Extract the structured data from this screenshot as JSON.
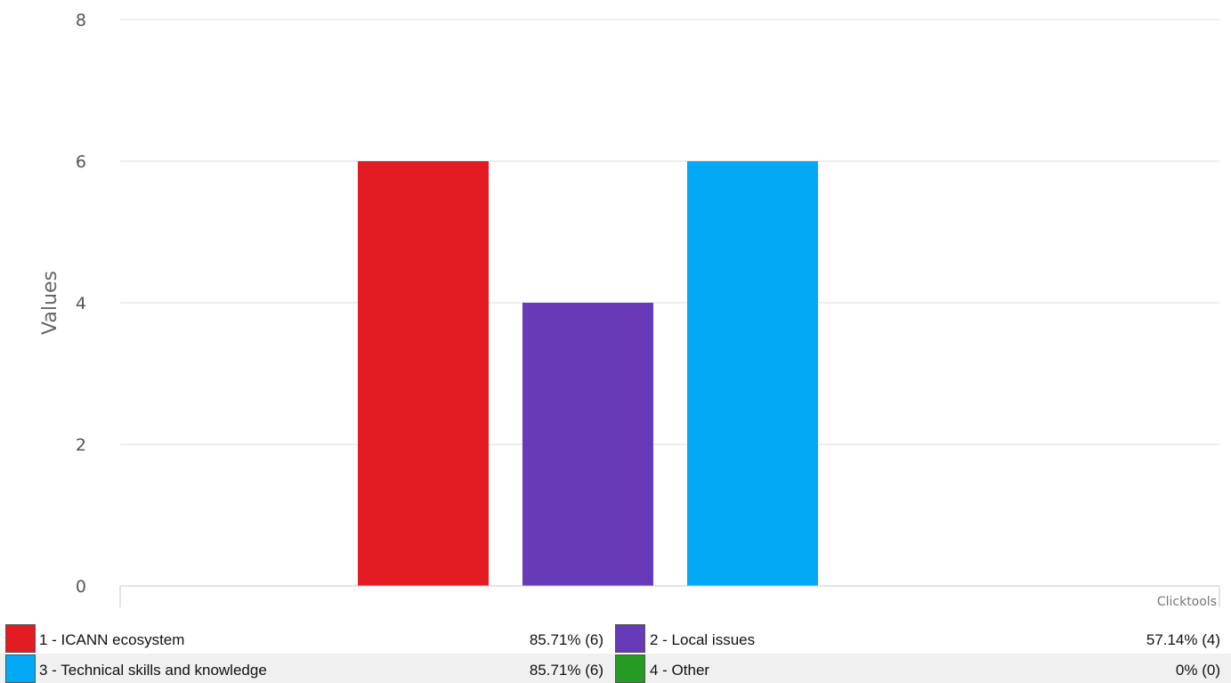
{
  "chart_data": {
    "type": "bar",
    "categories": [
      "1 - ICANN ecosystem",
      "2 - Local issues",
      "3 - Technical skills and knowledge",
      "4 - Other"
    ],
    "values": [
      6,
      4,
      6,
      0
    ],
    "ylabel": "Values",
    "ylim": [
      0,
      8
    ],
    "yticks": [
      0,
      2,
      4,
      6,
      8
    ],
    "grid": true,
    "watermark": "Clicktools",
    "colors": [
      "#e31b23",
      "#673ab7",
      "#03a9f4",
      "#259b24"
    ]
  },
  "legend": {
    "items": [
      {
        "label": "1 - ICANN ecosystem",
        "value": "85.71% (6)",
        "color": "#e31b23"
      },
      {
        "label": "2 - Local issues",
        "value": "57.14% (4)",
        "color": "#673ab7"
      },
      {
        "label": "3 - Technical skills and knowledge",
        "value": "85.71% (6)",
        "color": "#03a9f4"
      },
      {
        "label": "4 - Other",
        "value": "0% (0)",
        "color": "#259b24"
      }
    ]
  }
}
